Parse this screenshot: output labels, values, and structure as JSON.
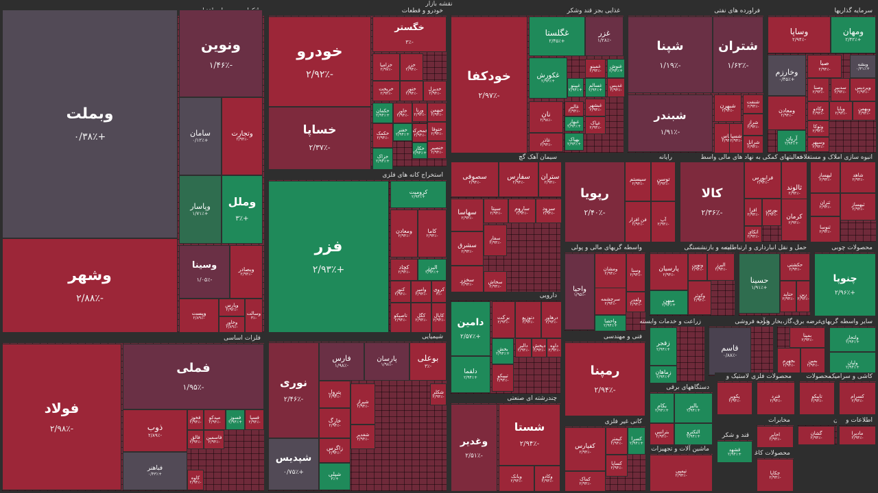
{
  "title": "نقشه بازار",
  "colors": {
    "strong_down": "#9c2638",
    "down": "#7e2a3d",
    "mild_down": "#6a3045",
    "flat": "#4a4250",
    "neutral": "#524a56",
    "up": "#1f8a5a",
    "mild_up": "#2f6d4f",
    "background": "#2e2e2e"
  },
  "chart_data": {
    "type": "treemap",
    "sectors": [
      {
        "name": "بانکها و موسسات اعتباری",
        "stocks": [
          [
            "وبملت",
            "+۰/۳۸٪"
          ],
          [
            "وشهر",
            "-۲/۸۸٪"
          ],
          [
            "ونوین",
            "-۱/۴۶٪"
          ],
          [
            "سامان",
            "+۰/۱۲٪"
          ],
          [
            "وتجارت",
            "-۲/۹۴٪"
          ],
          [
            "وپاسار",
            "+۱/۷۱٪"
          ],
          [
            "وملل",
            "+۳٪"
          ],
          [
            "وسینا",
            "-۱/۰۵٪"
          ],
          [
            "وبصادر",
            "-۲/۹۴٪"
          ],
          [
            "وپست",
            "-۲/۸۹٪"
          ],
          [
            "وپارس",
            "-۲/۹۲٪"
          ],
          [
            "وخاور",
            "-۲/۸۹٪"
          ],
          [
            "وسالت",
            "-۳٪"
          ]
        ]
      },
      {
        "name": "خودرو و قطعات",
        "stocks": [
          [
            "خودرو",
            "-۲/۹۲٪"
          ],
          [
            "خساپا",
            "-۲/۳۷٪"
          ],
          [
            "خگستر",
            "-۳٪"
          ],
          [
            "خزامیا",
            "-۲/۹۷٪"
          ],
          [
            "خزر",
            "-۲/۹۴٪"
          ],
          [
            "خریخت",
            "-۲/۹۴٪"
          ],
          [
            "ختور",
            "-۲/۹۴٪"
          ],
          [
            "خدیزل",
            "-۲/۹۴٪"
          ],
          [
            "خکمان",
            "+۲/۹۴٪"
          ],
          [
            "خاور",
            "-۲/۹۴٪"
          ],
          [
            "ورنا",
            "-۲/۹۴٪"
          ],
          [
            "خبهمن",
            "-۲/۹۴٪"
          ],
          [
            "ختوقا",
            "-۲/۹۴٪"
          ],
          [
            "خمحرکه",
            "-۲/۹۴٪"
          ],
          [
            "خکار",
            "+۲/۹۴٪"
          ],
          [
            "خنصیر",
            "-۲/۹۴٪"
          ],
          [
            "خفنر",
            "+۲/۹۴٪"
          ],
          [
            "خکمک",
            "-۲/۹۴٪"
          ],
          [
            "خزاک",
            "+۲/۹۴٪"
          ]
        ]
      },
      {
        "name": "غذایی بجز قند وشکر",
        "stocks": [
          [
            "خودکفا",
            "-۲/۹۷٪"
          ],
          [
            "غگلستا",
            "+۲/۴۵٪"
          ],
          [
            "غزر",
            "-۱/۲۸٪"
          ],
          [
            "غکورش",
            "+۲/۹۴٪"
          ],
          [
            "نان",
            "-۲/۹۸٪"
          ],
          [
            "غالبر",
            "-۲/۹۴٪"
          ],
          [
            "غبهار",
            "+۲/۹۴٪"
          ],
          [
            "غپینو",
            "+۲/۹۴٪"
          ],
          [
            "غسالم",
            "+۲/۹۴٪"
          ],
          [
            "غدیس",
            "-۲/۹۴٪"
          ],
          [
            "غمینو",
            "-۲/۹۴٪"
          ],
          [
            "غنوش",
            "+۲/۹۴٪"
          ],
          [
            "غبشهر",
            "-۲/۹۴٪"
          ],
          [
            "غپاک",
            "-۲/۹۴٪"
          ],
          [
            "بهپاک",
            "+۲/۹۴٪"
          ],
          [
            "غاذر",
            "-۲/۹۴٪"
          ]
        ]
      },
      {
        "name": "فراورده های نفتی",
        "stocks": [
          [
            "شپنا",
            "-۱/۱۹٪"
          ],
          [
            "شتران",
            "-۱/۶۲٪"
          ],
          [
            "شبندر",
            "-۱/۹۱٪"
          ],
          [
            "شبهرن",
            "-۲/۹۴٪"
          ],
          [
            "شپاس",
            "-۲/۹۴٪"
          ],
          [
            "شنفت",
            "-۲/۹۴٪"
          ],
          [
            "شراز",
            "-۲/۹۴٪"
          ],
          [
            "شرانل",
            "-۲/۹۴٪"
          ],
          [
            "شسپا",
            "-۲/۹۴٪"
          ]
        ]
      },
      {
        "name": "سرمایه گذاریها",
        "stocks": [
          [
            "وساپا",
            "-۲/۹۴٪"
          ],
          [
            "ومهان",
            "+۲/۴۲٪"
          ],
          [
            "وخارزم",
            "+۰/۴۵٪"
          ],
          [
            "وبشه",
            "+۰/۳۱٪"
          ],
          [
            "صبا",
            "-۲/۹۴٪"
          ],
          [
            "وصنا",
            "-۲/۹۴٪"
          ],
          [
            "ومعادن",
            "-۲/۹۴٪"
          ],
          [
            "سدبیر",
            "-۲/۹۴٪"
          ],
          [
            "وپردیس",
            "-۲/۹۴٪"
          ],
          [
            "وکادو",
            "-۲/۹۴٪"
          ],
          [
            "ویایا",
            "-۲/۹۴٪"
          ],
          [
            "وتوکا",
            "-۲/۹۴٪"
          ],
          [
            "وسپهر",
            "-۲/۹۴٪"
          ],
          [
            "آریان",
            "+۲/۹۴٪"
          ],
          [
            "وبهمن",
            "-۲/۹۴٪"
          ]
        ]
      },
      {
        "name": "استخراج کانه های فلزی",
        "stocks": [
          [
            "فزر",
            "+۲/۹۳٪"
          ],
          [
            "کرومیت",
            "+۲/۹۴٪"
          ],
          [
            "ومعادن",
            "-۲/۹۴٪"
          ],
          [
            "کاما",
            "-۲/۹۴٪"
          ],
          [
            "کچاد",
            "-۲/۹۴٪"
          ],
          [
            "البرز",
            "+۲/۹۴٪"
          ],
          [
            "کنور",
            "-۲/۹۴٪"
          ],
          [
            "وامیر",
            "-۲/۹۴٪"
          ],
          [
            "کروی",
            "-۳٪"
          ],
          [
            "کگل",
            "-۲/۹۴٪"
          ],
          [
            "کاپال",
            "-۲/۹۴٪"
          ],
          [
            "تاصیکو",
            "-۲/۹۴٪"
          ]
        ]
      },
      {
        "name": "سیمان آهک گچ",
        "stocks": [
          [
            "سصوفی",
            "-۲/۹۴٪"
          ],
          [
            "سفارس",
            "-۲/۹۴٪"
          ],
          [
            "ستران",
            "-۲/۹۴٪"
          ],
          [
            "سهاسا",
            "-۲/۹۴٪"
          ],
          [
            "سیتا",
            "-۲/۹۴٪"
          ],
          [
            "ساروم",
            "-۲/۹۴٪"
          ],
          [
            "سرود",
            "-۲/۹۴٪"
          ],
          [
            "سشرق",
            "-۲/۹۴٪"
          ],
          [
            "سخزر",
            "-۲/۹۴٪"
          ],
          [
            "سفار",
            "-۲/۹۴٪"
          ],
          [
            "سخاش",
            "-۲/۹۴٪"
          ]
        ]
      },
      {
        "name": "رایانه",
        "stocks": [
          [
            "رپویا",
            "-۲/۴۰٪"
          ],
          [
            "سیستم",
            "-۲/۹۴٪"
          ],
          [
            "توسن",
            "-۲/۹۴٪"
          ],
          [
            "آپ",
            "-۲/۹۴٪"
          ],
          [
            "فن افزار",
            "-۲/۹۴٪"
          ]
        ]
      },
      {
        "name": "فعالیتهای کمکی به نهاد های مالی واسط",
        "stocks": [
          [
            "کالا",
            "-۲/۳۶٪"
          ],
          [
            "فرابورس",
            "-۲/۹۴٪"
          ],
          [
            "افرا",
            "-۲/۹۴٪"
          ],
          [
            "بورس",
            "-۲/۹۴٪"
          ],
          [
            "اتکای",
            "-۲/۹۴٪"
          ]
        ]
      },
      {
        "name": "انبوه سازی املاک و مستغلات",
        "stocks": [
          [
            "ثالوند",
            "-۲/۹۴٪"
          ],
          [
            "کرمان",
            "-۲/۹۴٪"
          ],
          [
            "شاهد",
            "-۲/۹۴٪"
          ],
          [
            "لپهساز",
            "-۲/۹۴٪"
          ],
          [
            "ثتران",
            "-۲/۹۴٪"
          ],
          [
            "ثنوسا",
            "-۲/۹۴٪"
          ],
          [
            "ثبهساز",
            "-۲/۹۴٪"
          ]
        ]
      },
      {
        "name": "فلزات اساسی",
        "stocks": [
          [
            "فولاد",
            "-۲/۹۸٪"
          ],
          [
            "فملی",
            "-۱/۹۵٪"
          ],
          [
            "ذوب",
            "-۲/۸۹٪"
          ],
          [
            "فباهنر",
            "+۰/۴۳٪"
          ],
          [
            "فخوز",
            "-۲/۹۴٪"
          ],
          [
            "میدکو",
            "-۲/۹۴٪"
          ],
          [
            "فسوز",
            "+۲/۹۴٪"
          ],
          [
            "فسپا",
            "-۲/۹۴٪"
          ],
          [
            "فاسمین",
            "-۲/۹۴٪"
          ],
          [
            "فالق",
            "-۲/۹۴٪"
          ],
          [
            "کاوه",
            "-۲/۹۴٪"
          ]
        ]
      },
      {
        "name": "شیمیایی",
        "stocks": [
          [
            "نوری",
            "-۲/۴۶٪"
          ],
          [
            "شپدیس",
            "+۰/۷۵٪"
          ],
          [
            "فارس",
            "-۱/۹۸٪"
          ],
          [
            "پارسان",
            "-۱/۹۸٪"
          ],
          [
            "بوعلی",
            "-۳٪"
          ],
          [
            "پترول",
            "-۲/۹۴٪"
          ],
          [
            "خارگ",
            "-۲/۹۴٪"
          ],
          [
            "زاگرس",
            "-۲/۹۴٪"
          ],
          [
            "شپلی",
            "+۳٪"
          ],
          [
            "شیراز",
            "-۲/۹۴٪"
          ],
          [
            "شغدیر",
            "-۲/۹۴٪"
          ],
          [
            "شکلر",
            "-۲/۹۴٪"
          ]
        ]
      },
      {
        "name": "دارویی",
        "stocks": [
          [
            "دامین",
            "+۲/۵۷٪"
          ],
          [
            "دلقما",
            "+۲/۹۴٪"
          ],
          [
            "برکت",
            "-۲/۹۴٪"
          ],
          [
            "دتوزیع",
            "-۲/۹۴٪"
          ],
          [
            "درهاور",
            "-۲/۹۴٪"
          ],
          [
            "بخش",
            "+۲/۹۴٪"
          ],
          [
            "دالبر",
            "-۲/۹۴٪"
          ],
          [
            "دپخش",
            "-۲/۹۴٪"
          ],
          [
            "داوه",
            "-۲/۹۴٪"
          ],
          [
            "تیپیکو",
            "-۲/۹۴٪"
          ]
        ]
      },
      {
        "name": "واسطه گریهای مالی و پولی",
        "stocks": [
          [
            "واحیا",
            "-۱/۹۵٪"
          ],
          [
            "ومشان",
            "-۲/۹۴٪"
          ],
          [
            "وسنا",
            "-۲/۹۴٪"
          ],
          [
            "سرچشمه",
            "-۲/۹۴٪"
          ],
          [
            "ولغدر",
            "-۲/۹۴٪"
          ],
          [
            "واحصا",
            "+۲/۹۴٪"
          ]
        ]
      },
      {
        "name": "بیمه و بازنشستگی",
        "stocks": [
          [
            "پارسیان",
            "-۲/۹۴٪"
          ],
          [
            "میهن",
            "+۲/۹۴٪"
          ],
          [
            "ونوین",
            "-۲/۹۴٪"
          ],
          [
            "البرز",
            "-۲/۹۴٪"
          ],
          [
            "وکوثر",
            "-۲/۹۴٪"
          ]
        ]
      },
      {
        "name": "حمل و نقل انبارداری و ارتباطات",
        "stocks": [
          [
            "حسینا",
            "+۱/۹۱٪"
          ],
          [
            "حکشتی",
            "-۲/۹۴٪"
          ],
          [
            "حتاید",
            "-۲/۹۴٪"
          ],
          [
            "رین",
            "-۲/۹۴٪"
          ]
        ]
      },
      {
        "name": "محصولات چوبی",
        "stocks": [
          [
            "چنوپا",
            "+۲/۹۶٪"
          ]
        ]
      },
      {
        "name": "فنی و مهندسی",
        "stocks": [
          [
            "رمپنا",
            "-۲/۹۴٪"
          ]
        ]
      },
      {
        "name": "خرده فروشی",
        "stocks": [
          [
            "قاسم",
            "-۰/۸۸٪"
          ]
        ]
      },
      {
        "name": "زراعت و خدمات وابسته",
        "stocks": [
          [
            "زقجر",
            "+۲/۹۴٪"
          ],
          [
            "زماهان",
            "+۲/۹۴٪"
          ]
        ]
      },
      {
        "name": "عرضه برق،گاز،بخار و آب",
        "stocks": [
          [
            "بمپنا",
            "-۲/۹۴٪"
          ],
          [
            "بجهرم",
            "-۲/۹۴٪"
          ],
          [
            "بمین",
            "-۲/۹۴٪"
          ]
        ]
      },
      {
        "name": "سایر واسطه گریهای",
        "stocks": [
          [
            "ولتجار",
            "+۲/۹۴٪"
          ],
          [
            "ولپان",
            "+۲/۹۴٪"
          ]
        ]
      },
      {
        "name": "چندرشته ای صنعتی",
        "stocks": [
          [
            "وغدیر",
            "-۲/۵۱٪"
          ],
          [
            "شستا",
            "-۲/۹۴٪"
          ],
          [
            "وبانک",
            "-۲/۹۴٪"
          ],
          [
            "وکادو",
            "-۲/۹۴٪"
          ]
        ]
      },
      {
        "name": "کانی غیر فلزی",
        "stocks": [
          [
            "کفپارس",
            "-۲/۹۴٪"
          ],
          [
            "کیمتر",
            "-۲/۹۴٪"
          ],
          [
            "کسرا",
            "+۲/۹۴٪"
          ],
          [
            "کساپا",
            "-۲/۹۴٪"
          ],
          [
            "کماک",
            "-۲/۹۴٪"
          ]
        ]
      },
      {
        "name": "دستگاههای برقی",
        "stocks": [
          [
            "بکام",
            "+۲/۹۴٪"
          ],
          [
            "بالبر",
            "+۲/۹۴٪"
          ],
          [
            "بترانس",
            "-۲/۹۴٪"
          ],
          [
            "التکترو",
            "+۲/۹۴٪"
          ],
          [
            "لبرق",
            "-۲/۹۴٪"
          ]
        ]
      },
      {
        "name": "لاستیک و",
        "stocks": [
          [
            "پکویر",
            "-۲/۹۴٪"
          ]
        ]
      },
      {
        "name": "محصولات فلزی",
        "stocks": [
          [
            "فنرد",
            "-۲/۹۴٪"
          ]
        ]
      },
      {
        "name": "محصولات",
        "stocks": [
          [
            "تاپیکو",
            "-۲/۹۴٪"
          ]
        ]
      },
      {
        "name": "کاشی و سرامیک",
        "stocks": [
          [
            "کسرام",
            "-۲/۹۴٪"
          ]
        ]
      },
      {
        "name": "ماشین آلات و تجهیزات",
        "stocks": [
          [
            "تپمپی",
            "-۲/۹۴٪"
          ]
        ]
      },
      {
        "name": "مخابرات",
        "stocks": [
          [
            "اخابر",
            "-۲/۹۴٪"
          ]
        ]
      },
      {
        "name": "هتل و رستوران",
        "stocks": [
          [
            "گشان",
            "-۲/۹۴٪"
          ]
        ]
      },
      {
        "name": "محصولات کاغذی",
        "stocks": [
          [
            "چکاپا",
            "-۲/۹۴٪"
          ]
        ]
      },
      {
        "name": "اطلاعات و",
        "stocks": [
          [
            "مادیرا",
            "-۲/۹۴٪"
          ]
        ]
      },
      {
        "name": "قند و شکر",
        "stocks": [
          [
            "قشهد",
            "+۲/۹۴٪"
          ]
        ]
      }
    ]
  }
}
